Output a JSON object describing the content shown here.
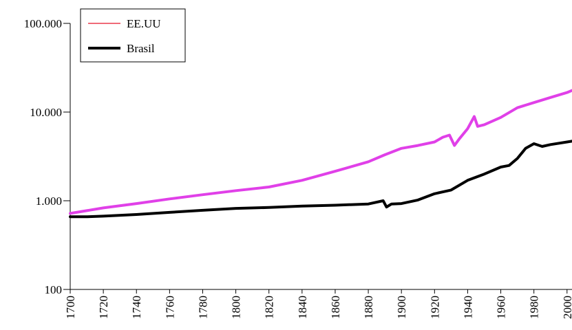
{
  "chart_data": {
    "type": "line",
    "title": "",
    "xlabel": "",
    "ylabel": "",
    "y_scale": "log",
    "xlim": [
      1700,
      2003
    ],
    "ylim": [
      100,
      100000
    ],
    "grid": false,
    "legend_position": "top-left",
    "x_ticks": [
      1700,
      1720,
      1740,
      1760,
      1780,
      1800,
      1820,
      1840,
      1860,
      1880,
      1900,
      1920,
      1940,
      1960,
      1980,
      2000
    ],
    "x_tick_labels": [
      "1700",
      "1720",
      "1740",
      "1760",
      "1780",
      "1800",
      "1820",
      "1840",
      "1860",
      "1880",
      "1900",
      "1920",
      "1940",
      "1960",
      "1980",
      "2000"
    ],
    "y_ticks": [
      100,
      1000,
      10000,
      100000
    ],
    "y_tick_labels": [
      "100",
      "1.000",
      "10.000",
      "100.000"
    ],
    "legend": [
      {
        "label": "EE.UU",
        "color": "#f06a78"
      },
      {
        "label": "Brasil",
        "color": "#000000"
      }
    ],
    "series": [
      {
        "name": "EE.UU",
        "color": "#e040e8",
        "x": [
          1700,
          1720,
          1740,
          1760,
          1780,
          1800,
          1820,
          1840,
          1860,
          1880,
          1890,
          1900,
          1910,
          1920,
          1925,
          1929,
          1932,
          1935,
          1940,
          1944,
          1946,
          1950,
          1960,
          1970,
          1980,
          1990,
          2000,
          2003
        ],
        "y": [
          720,
          830,
          930,
          1050,
          1170,
          1300,
          1430,
          1700,
          2150,
          2750,
          3300,
          3900,
          4200,
          4600,
          5200,
          5500,
          4200,
          5000,
          6500,
          8900,
          6900,
          7200,
          8700,
          11200,
          12800,
          14600,
          16600,
          17500
        ]
      },
      {
        "name": "Brasil",
        "color": "#000000",
        "x": [
          1700,
          1710,
          1720,
          1740,
          1760,
          1780,
          1800,
          1820,
          1840,
          1860,
          1880,
          1889,
          1891,
          1894,
          1900,
          1910,
          1920,
          1930,
          1940,
          1950,
          1960,
          1965,
          1970,
          1975,
          1980,
          1985,
          1990,
          2000,
          2003
        ],
        "y": [
          660,
          660,
          670,
          700,
          740,
          780,
          820,
          840,
          870,
          890,
          920,
          1000,
          850,
          920,
          930,
          1020,
          1200,
          1320,
          1700,
          2000,
          2400,
          2500,
          3000,
          3900,
          4400,
          4100,
          4300,
          4600,
          4700
        ]
      }
    ]
  }
}
